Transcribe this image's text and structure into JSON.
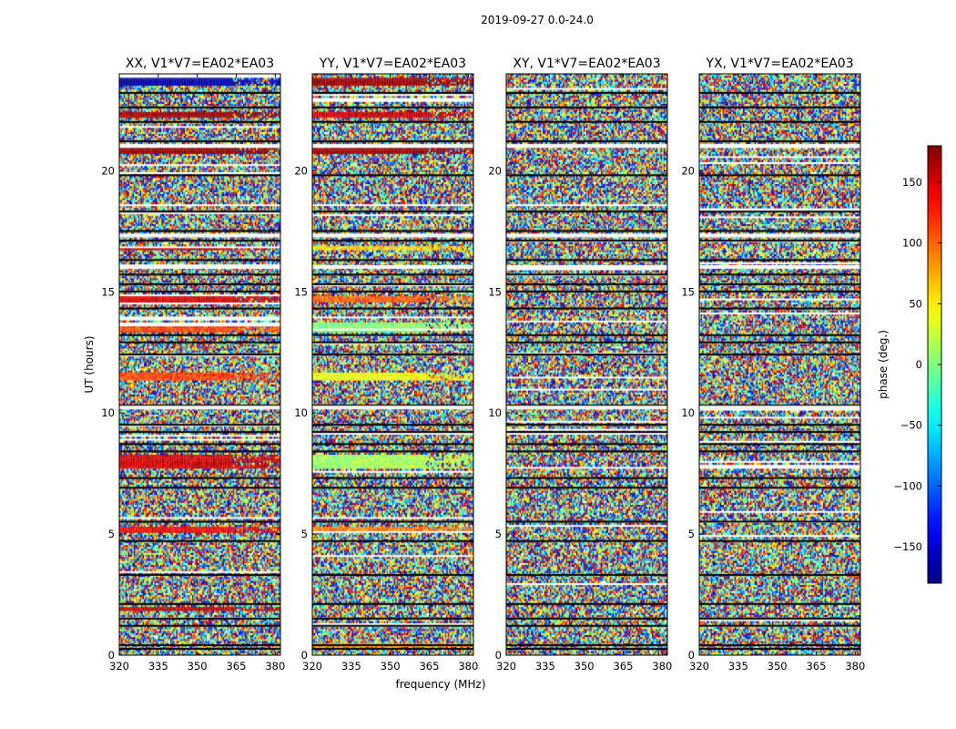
{
  "chart_data": {
    "type": "heatmap",
    "suptitle": "2019-09-27 0.0-24.0",
    "xlabel": "frequency (MHz)",
    "ylabel": "UT (hours)",
    "xlim": [
      320,
      382
    ],
    "ylim": [
      0,
      24
    ],
    "xticks": [
      "320",
      "335",
      "350",
      "365",
      "380"
    ],
    "yticks": [
      "0",
      "5",
      "10",
      "15",
      "20"
    ],
    "xtick_values": [
      320,
      335,
      350,
      365,
      380
    ],
    "ytick_values": [
      0,
      5,
      10,
      15,
      20
    ],
    "panels": [
      {
        "title": "XX, V1*V7=EA02*EA03",
        "coherent_bands": [
          {
            "start": 23.55,
            "end": 23.85,
            "phase": -170
          },
          {
            "start": 22.25,
            "end": 22.45,
            "phase": 170
          },
          {
            "start": 20.7,
            "end": 20.95,
            "phase": 175
          },
          {
            "start": 16.75,
            "end": 16.95,
            "phase": 160
          },
          {
            "start": 14.6,
            "end": 14.85,
            "phase": 150
          },
          {
            "start": 13.4,
            "end": 13.8,
            "phase": 110
          },
          {
            "start": 11.4,
            "end": 11.7,
            "phase": 110
          },
          {
            "start": 7.7,
            "end": 8.3,
            "phase": 150
          },
          {
            "start": 5.05,
            "end": 5.3,
            "phase": 140
          },
          {
            "start": 1.9,
            "end": 2.05,
            "phase": 160
          }
        ]
      },
      {
        "title": "YY, V1*V7=EA02*EA03",
        "coherent_bands": [
          {
            "start": 23.55,
            "end": 23.85,
            "phase": 170
          },
          {
            "start": 22.25,
            "end": 22.45,
            "phase": 150
          },
          {
            "start": 20.7,
            "end": 20.95,
            "phase": 170
          },
          {
            "start": 16.75,
            "end": 16.95,
            "phase": 60
          },
          {
            "start": 14.6,
            "end": 14.85,
            "phase": 100
          },
          {
            "start": 13.4,
            "end": 13.8,
            "phase": 0
          },
          {
            "start": 11.4,
            "end": 11.7,
            "phase": 40
          },
          {
            "start": 7.7,
            "end": 8.3,
            "phase": 10
          },
          {
            "start": 5.05,
            "end": 5.3,
            "phase": 90
          },
          {
            "start": 0.4,
            "end": 0.55,
            "phase": 80
          }
        ]
      },
      {
        "title": "XY, V1*V7=EA02*EA03",
        "coherent_bands": []
      },
      {
        "title": "YX, V1*V7=EA02*EA03",
        "coherent_bands": []
      }
    ],
    "colorbar": {
      "label": "phase (deg.)",
      "range": [
        -180,
        180
      ],
      "ticks": [
        "150",
        "100",
        "50",
        "0",
        "−50",
        "−100",
        "−150"
      ],
      "tick_values": [
        150,
        100,
        50,
        0,
        -50,
        -100,
        -150
      ],
      "colormap": "jet"
    },
    "flagged_rows_hours": [
      0.3,
      0.45,
      1.25,
      1.55,
      2.15,
      3.35,
      4.75,
      5.55,
      6.95,
      7.35,
      8.45,
      8.75,
      9.25,
      9.55,
      10.35,
      12.45,
      12.95,
      13.25,
      14.35,
      15.05,
      15.35,
      15.75,
      16.35,
      17.15,
      17.55,
      18.35,
      19.85,
      21.25,
      22.05,
      22.65,
      23.25
    ],
    "noisy_gaps_hours": [
      10.3,
      16.1,
      17.4,
      21.1
    ]
  }
}
